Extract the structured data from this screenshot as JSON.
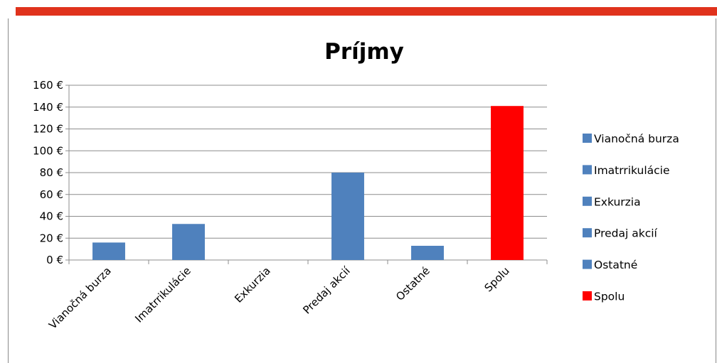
{
  "chart_data": {
    "type": "bar",
    "title": "Príjmy",
    "xlabel": "",
    "ylabel": "",
    "categories": [
      "Vianočná burza",
      "Imatrrikulácie",
      "Exkurzia",
      "Predaj akcií",
      "Ostatné",
      "Spolu"
    ],
    "values": [
      16,
      33,
      0,
      80,
      13,
      141
    ],
    "colors": [
      "#4f81bd",
      "#4f81bd",
      "#4f81bd",
      "#4f81bd",
      "#4f81bd",
      "#ff0000"
    ],
    "ylim": [
      0,
      160
    ],
    "yticks": [
      "0 €",
      "20 €",
      "40 €",
      "60 €",
      "80 €",
      "100 €",
      "120 €",
      "140 €",
      "160 €"
    ],
    "grid": true,
    "legend_position": "right",
    "legend": [
      {
        "label": "Vianočná burza",
        "color": "#4f81bd"
      },
      {
        "label": "Imatrrikulácie",
        "color": "#4f81bd"
      },
      {
        "label": "Exkurzia",
        "color": "#4f81bd"
      },
      {
        "label": "Predaj akcií",
        "color": "#4f81bd"
      },
      {
        "label": "Ostatné",
        "color": "#4f81bd"
      },
      {
        "label": "Spolu",
        "color": "#ff0000"
      }
    ]
  },
  "colors": {
    "header_accent": "#e0321c",
    "gridline": "#8c8c8c"
  }
}
